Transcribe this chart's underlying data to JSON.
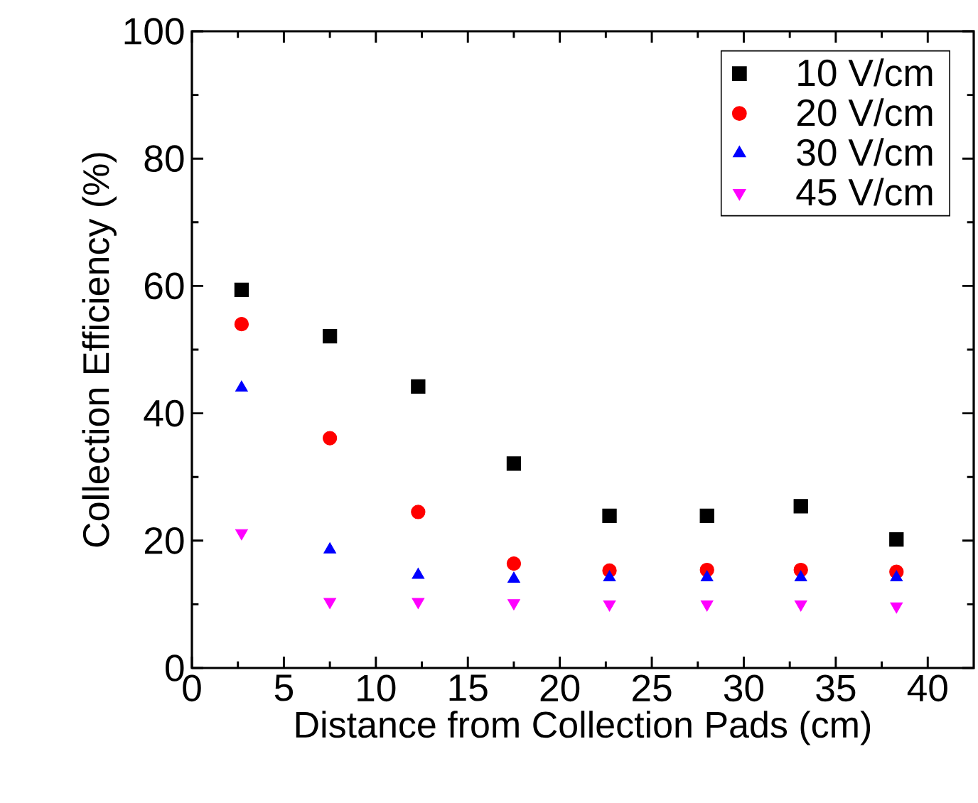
{
  "chart_data": {
    "type": "scatter",
    "xlabel": "Distance from Collection Pads (cm)",
    "ylabel": "Collection Efficiency (%)",
    "x": [
      2.7,
      7.5,
      12.3,
      17.5,
      22.7,
      28.0,
      33.1,
      38.3
    ],
    "series": [
      {
        "name": "10 V/cm",
        "color": "#000000",
        "marker": "square",
        "values": [
          59.4,
          52.1,
          44.2,
          32.1,
          23.9,
          23.9,
          25.4,
          20.2
        ]
      },
      {
        "name": "20 V/cm",
        "color": "#ff0000",
        "marker": "circle",
        "values": [
          54.0,
          36.1,
          24.5,
          16.4,
          15.3,
          15.4,
          15.4,
          15.1
        ]
      },
      {
        "name": "30 V/cm",
        "color": "#0000ff",
        "marker": "triangle",
        "values": [
          44.0,
          18.6,
          14.6,
          14.0,
          14.2,
          14.2,
          14.2,
          14.2
        ]
      },
      {
        "name": "45 V/cm",
        "color": "#ff00ff",
        "marker": "triangle-down",
        "values": [
          21.2,
          10.4,
          10.4,
          10.2,
          10.0,
          10.0,
          10.0,
          9.7
        ]
      }
    ],
    "xlim": [
      0,
      42.5
    ],
    "ylim": [
      0,
      100
    ],
    "xticks": [
      0,
      5,
      10,
      15,
      20,
      25,
      30,
      35,
      40
    ],
    "yticks": [
      0,
      20,
      40,
      60,
      80,
      100
    ],
    "grid": false,
    "legend": "top right"
  }
}
